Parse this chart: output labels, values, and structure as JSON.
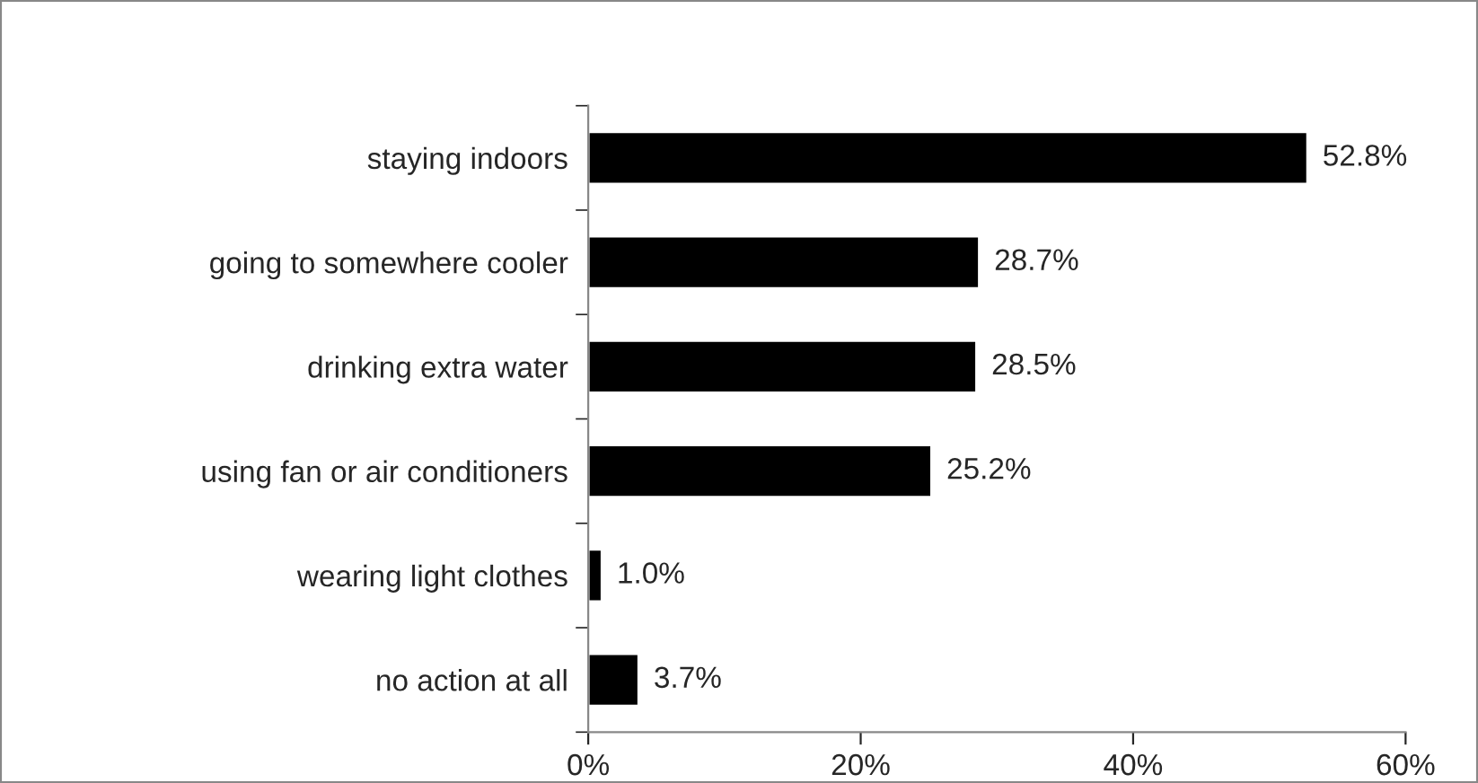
{
  "chart_data": {
    "type": "bar",
    "orientation": "horizontal",
    "categories": [
      "staying indoors",
      "going to somewhere cooler",
      "drinking extra water",
      "using fan or air conditioners",
      "wearing light clothes",
      "no action at all"
    ],
    "values": [
      52.8,
      28.7,
      28.5,
      25.2,
      1.0,
      3.7
    ],
    "value_labels": [
      "52.8%",
      "28.7%",
      "28.5%",
      "25.2%",
      "1.0%",
      "3.7%"
    ],
    "color": "#000000",
    "xlim": [
      0,
      60
    ],
    "xticks": [
      {
        "value": 0,
        "label": "0%"
      },
      {
        "value": 20,
        "label": "20%"
      },
      {
        "value": 40,
        "label": "40%"
      },
      {
        "value": 60,
        "label": "60%"
      }
    ],
    "grid": false,
    "legend": false
  }
}
